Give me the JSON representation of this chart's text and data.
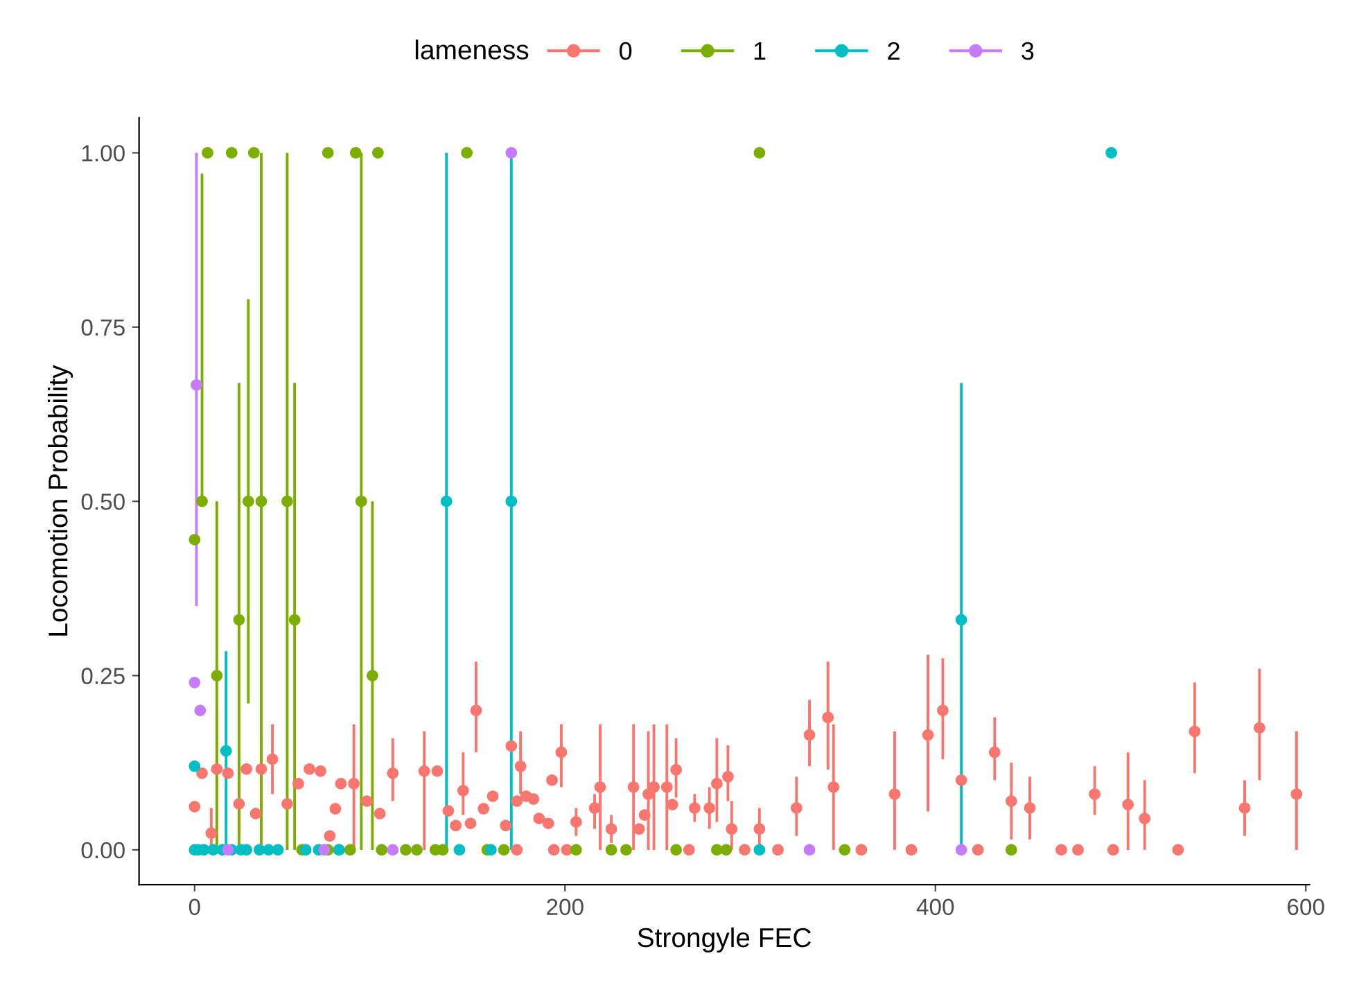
{
  "chart_data": {
    "type": "scatter",
    "xlabel": "Strongyle FEC",
    "ylabel": "Locomotion Probability",
    "legend_title": "lameness",
    "legend": "top",
    "grid": false,
    "marker": "circle",
    "xlim": [
      -30,
      602
    ],
    "xticks": [
      0,
      200,
      400,
      600
    ],
    "ylim": [
      -0.05,
      1.05
    ],
    "yticks": [
      {
        "value": 0,
        "label": "0.00"
      },
      {
        "value": 0.25,
        "label": "0.25"
      },
      {
        "value": 0.5,
        "label": "0.50"
      },
      {
        "value": 0.75,
        "label": "0.75"
      },
      {
        "value": 1,
        "label": "1.00"
      }
    ],
    "series": [
      {
        "name": "0",
        "color": "#f8766d",
        "x": [
          0,
          4,
          9,
          12,
          18,
          24,
          28,
          33,
          36,
          42,
          50,
          56,
          62,
          68,
          73,
          76,
          79,
          86,
          93,
          100,
          107,
          124,
          131,
          137,
          141,
          145,
          149,
          152,
          156,
          161,
          168,
          171,
          174,
          176,
          179,
          183,
          186,
          191,
          193,
          198,
          206,
          216,
          219,
          225,
          237,
          240,
          243,
          245,
          248,
          255,
          258,
          260,
          270,
          278,
          282,
          288,
          290,
          305,
          325,
          332,
          342,
          345,
          378,
          396,
          404,
          414,
          432,
          441,
          451,
          486,
          504,
          513,
          540,
          567,
          575,
          595,
          174,
          194,
          201,
          267,
          297,
          315,
          360,
          387,
          423,
          468,
          477,
          496,
          531
        ],
        "values": [
          0.062,
          0.11,
          0.024,
          0.116,
          0.11,
          0.066,
          0.116,
          0.052,
          0.116,
          0.13,
          0.066,
          0.095,
          0.116,
          0.113,
          0.02,
          0.059,
          0.095,
          0.095,
          0.07,
          0.052,
          0.11,
          0.113,
          0.113,
          0.056,
          0.035,
          0.085,
          0.038,
          0.2,
          0.059,
          0.077,
          0.035,
          0.149,
          0.07,
          0.12,
          0.077,
          0.073,
          0.045,
          0.038,
          0.1,
          0.14,
          0.04,
          0.06,
          0.09,
          0.03,
          0.09,
          0.03,
          0.05,
          0.08,
          0.09,
          0.09,
          0.065,
          0.115,
          0.06,
          0.06,
          0.095,
          0.105,
          0.03,
          0.03,
          0.06,
          0.165,
          0.19,
          0.09,
          0.08,
          0.165,
          0.2,
          0.1,
          0.14,
          0.07,
          0.06,
          0.08,
          0.065,
          0.045,
          0.17,
          0.06,
          0.175,
          0.08,
          0,
          0,
          0,
          0,
          0,
          0,
          0,
          0,
          0,
          0,
          0,
          0,
          0
        ],
        "errors": [
          null,
          null,
          [
            0,
            0.06
          ],
          [
            0.03,
            0.2
          ],
          null,
          [
            0.02,
            0.12
          ],
          null,
          null,
          [
            0.06,
            0.16
          ],
          [
            0.08,
            0.18
          ],
          null,
          null,
          null,
          null,
          null,
          null,
          null,
          [
            0,
            0.18
          ],
          null,
          null,
          [
            0.07,
            0.16
          ],
          [
            0,
            0.17
          ],
          null,
          null,
          null,
          [
            0.05,
            0.14
          ],
          null,
          [
            0.14,
            0.27
          ],
          null,
          null,
          null,
          null,
          null,
          [
            0.08,
            0.17
          ],
          null,
          null,
          null,
          null,
          null,
          [
            0.09,
            0.18
          ],
          [
            0.02,
            0.06
          ],
          [
            0.03,
            0.08
          ],
          [
            0,
            0.18
          ],
          [
            0.01,
            0.05
          ],
          [
            0,
            0.18
          ],
          null,
          null,
          [
            0,
            0.17
          ],
          [
            0,
            0.18
          ],
          [
            0,
            0.18
          ],
          null,
          [
            0.075,
            0.16
          ],
          [
            0.04,
            0.08
          ],
          [
            0.03,
            0.09
          ],
          [
            0.04,
            0.16
          ],
          [
            0.07,
            0.15
          ],
          [
            0,
            0.07
          ],
          [
            0.005,
            0.06
          ],
          [
            0.02,
            0.105
          ],
          [
            0.12,
            0.215
          ],
          [
            0.115,
            0.27
          ],
          [
            0,
            0.18
          ],
          [
            0,
            0.17
          ],
          [
            0.055,
            0.28
          ],
          [
            0.13,
            0.275
          ],
          null,
          [
            0.1,
            0.19
          ],
          [
            0.015,
            0.125
          ],
          [
            0.015,
            0.105
          ],
          [
            0.05,
            0.12
          ],
          [
            0,
            0.14
          ],
          [
            0,
            0.1
          ],
          [
            0.11,
            0.24
          ],
          [
            0.02,
            0.1
          ],
          [
            0.1,
            0.26
          ],
          [
            0,
            0.17
          ],
          null,
          null,
          null,
          null,
          null,
          null,
          null,
          null,
          null,
          null,
          null,
          null,
          null
        ]
      },
      {
        "name": "1",
        "color": "#7cae00",
        "x": [
          0,
          4,
          7,
          12,
          20,
          24,
          29,
          32,
          36,
          50,
          54,
          72,
          87,
          90,
          96,
          99,
          147,
          305,
          58,
          72,
          78,
          84,
          101,
          114,
          120,
          130,
          134,
          158,
          167,
          206,
          225,
          233,
          260,
          282,
          287,
          351,
          441
        ],
        "values": [
          0.445,
          0.5,
          1,
          0.25,
          1,
          0.33,
          0.5,
          1,
          0.5,
          0.5,
          0.33,
          1,
          1,
          0.5,
          0.25,
          1,
          1,
          1,
          0,
          0,
          0,
          0,
          0,
          0,
          0,
          0,
          0,
          0,
          0,
          0,
          0,
          0,
          0,
          0,
          0,
          0,
          0
        ],
        "errors": [
          null,
          [
            0.5,
            0.97
          ],
          null,
          [
            0,
            0.5
          ],
          null,
          [
            0,
            0.67
          ],
          [
            0.21,
            0.79
          ],
          null,
          [
            0,
            1
          ],
          [
            0,
            1
          ],
          [
            0,
            0.67
          ],
          null,
          null,
          [
            0,
            1
          ],
          [
            0,
            0.5
          ],
          null,
          null,
          null,
          null,
          null,
          null,
          null,
          null,
          null,
          null,
          null,
          null,
          null,
          null,
          null,
          null,
          null,
          null,
          null,
          null,
          null,
          null
        ]
      },
      {
        "name": "2",
        "color": "#00bfc4",
        "x": [
          0,
          17,
          136,
          171,
          414,
          495,
          0,
          2,
          5,
          10,
          15,
          20,
          25,
          28,
          35,
          40,
          45,
          60,
          67,
          78,
          143,
          160,
          305
        ],
        "values": [
          0.12,
          0.142,
          0.5,
          0.5,
          0.33,
          1,
          0,
          0,
          0,
          0,
          0,
          0,
          0,
          0,
          0,
          0,
          0,
          0,
          0,
          0,
          0,
          0,
          0
        ],
        "errors": [
          null,
          [
            0,
            0.285
          ],
          [
            0,
            1
          ],
          [
            0,
            1
          ],
          [
            0,
            0.67
          ],
          null,
          null,
          null,
          null,
          null,
          null,
          null,
          null,
          null,
          null,
          null,
          null,
          null,
          null,
          null,
          null,
          null,
          null
        ]
      },
      {
        "name": "3",
        "color": "#c77cff",
        "x": [
          1,
          0,
          3,
          171,
          18,
          70,
          107,
          332,
          414
        ],
        "values": [
          0.667,
          0.24,
          0.2,
          1,
          0,
          0,
          0,
          0,
          0
        ],
        "errors": [
          [
            0.35,
            1
          ],
          null,
          null,
          null,
          null,
          null,
          null,
          null,
          null
        ]
      }
    ]
  }
}
